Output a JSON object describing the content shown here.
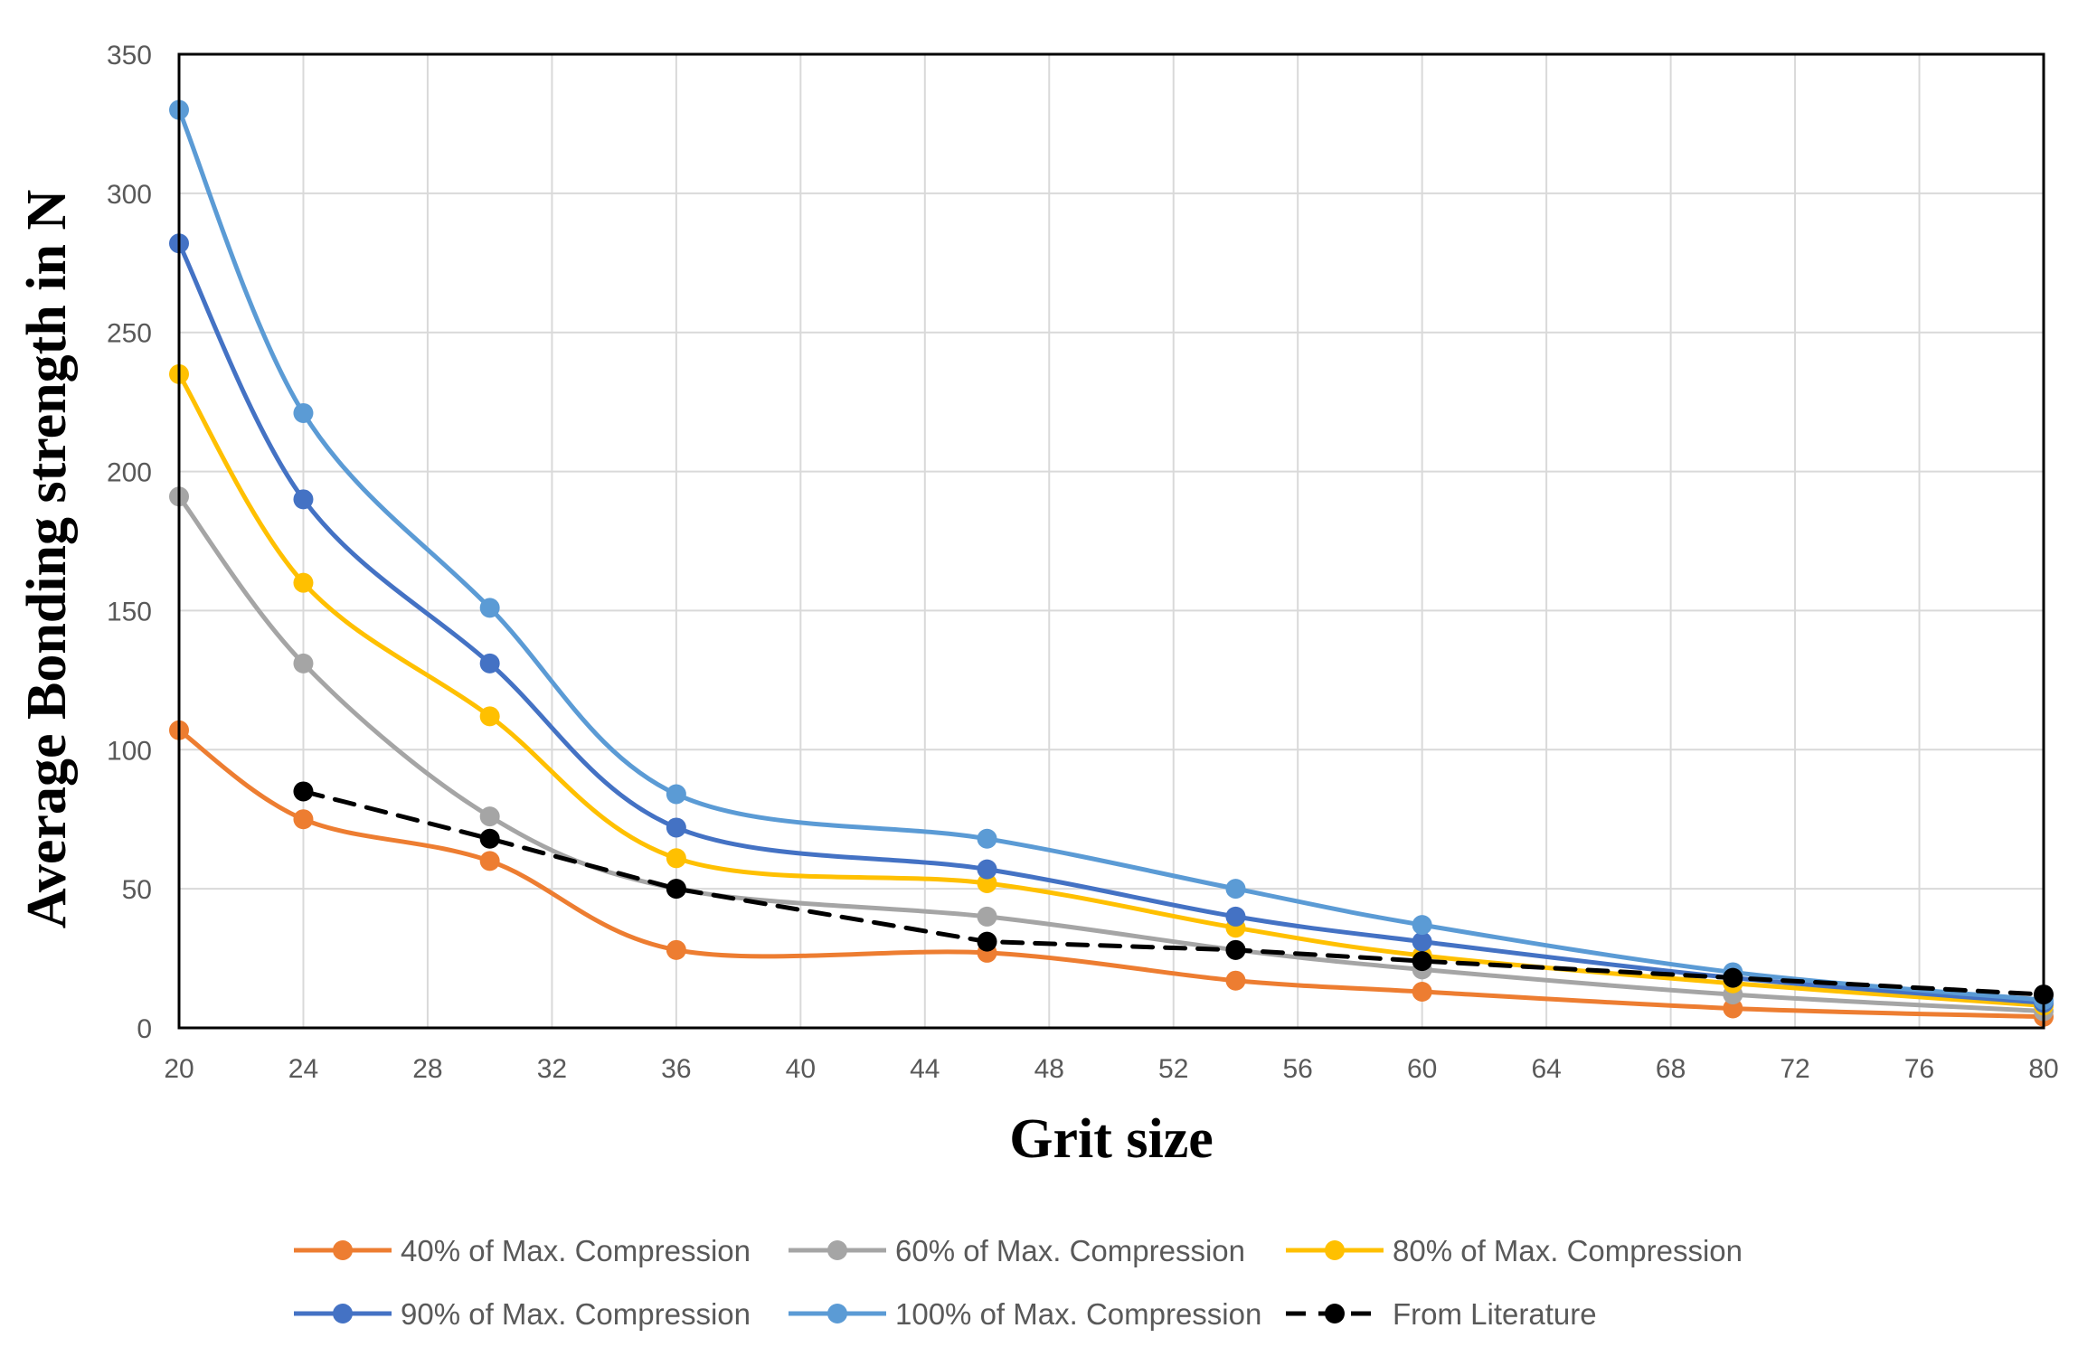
{
  "chart_data": {
    "type": "line",
    "title": "",
    "xlabel": "Grit size",
    "ylabel": "Average Bonding strength in N",
    "xlim": [
      20,
      80
    ],
    "ylim": [
      0,
      350
    ],
    "x_ticks": [
      20,
      24,
      28,
      32,
      36,
      40,
      44,
      48,
      52,
      56,
      60,
      64,
      68,
      72,
      76,
      80
    ],
    "y_ticks": [
      0,
      50,
      100,
      150,
      200,
      250,
      300,
      350
    ],
    "grid": true,
    "legend_position": "bottom",
    "series": [
      {
        "name": "40% of Max. Compression",
        "color": "#ED7D31",
        "dashed": false,
        "x": [
          20,
          24,
          30,
          36,
          46,
          54,
          60,
          70,
          80
        ],
        "values": [
          107,
          75,
          60,
          28,
          27,
          17,
          13,
          7,
          4
        ]
      },
      {
        "name": "60% of Max. Compression",
        "color": "#A5A5A5",
        "dashed": false,
        "x": [
          20,
          24,
          30,
          36,
          46,
          54,
          60,
          70,
          80
        ],
        "values": [
          191,
          131,
          76,
          50,
          40,
          28,
          21,
          12,
          6
        ]
      },
      {
        "name": "80% of Max. Compression",
        "color": "#FFC000",
        "dashed": false,
        "x": [
          20,
          24,
          30,
          36,
          46,
          54,
          60,
          70,
          80
        ],
        "values": [
          235,
          160,
          112,
          61,
          52,
          36,
          26,
          16,
          8
        ]
      },
      {
        "name": "90% of Max. Compression",
        "color": "#4472C4",
        "dashed": false,
        "x": [
          20,
          24,
          30,
          36,
          46,
          54,
          60,
          70,
          80
        ],
        "values": [
          282,
          190,
          131,
          72,
          57,
          40,
          31,
          18,
          9
        ]
      },
      {
        "name": "100% of Max. Compression",
        "color": "#5B9BD5",
        "dashed": false,
        "x": [
          20,
          24,
          30,
          36,
          46,
          54,
          60,
          70,
          80
        ],
        "values": [
          330,
          221,
          151,
          84,
          68,
          50,
          37,
          20,
          10
        ]
      },
      {
        "name": "From Literature",
        "color": "#000000",
        "dashed": true,
        "x": [
          24,
          30,
          36,
          46,
          54,
          60,
          70,
          80
        ],
        "values": [
          85,
          68,
          50,
          31,
          28,
          24,
          18,
          12
        ]
      }
    ]
  }
}
